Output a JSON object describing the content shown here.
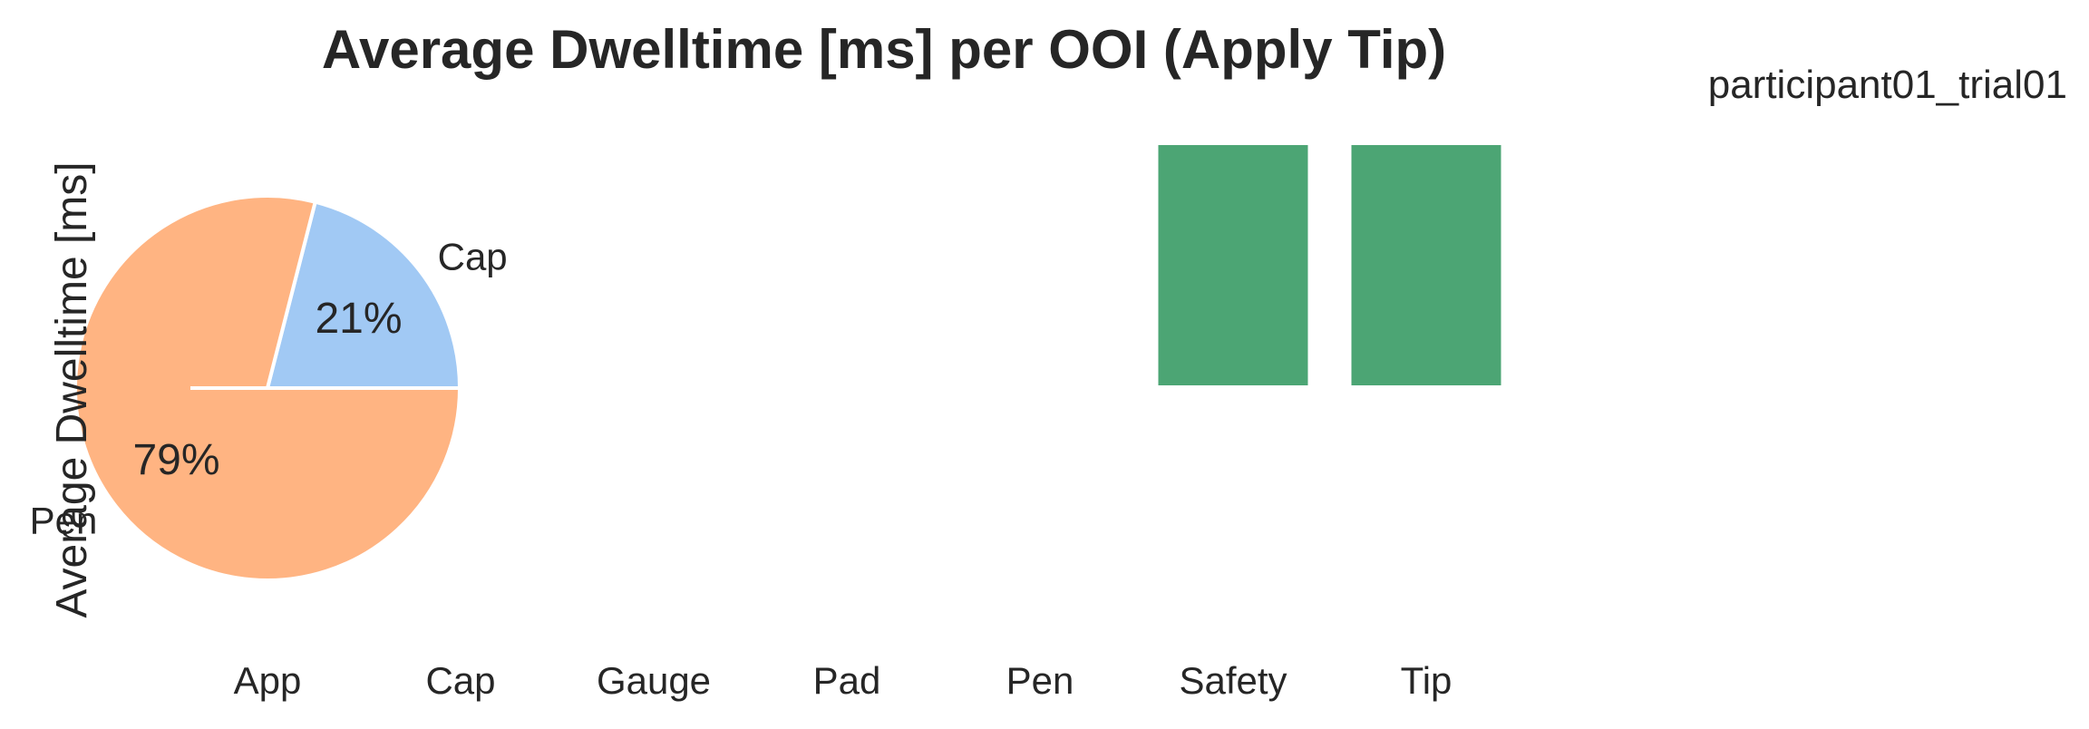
{
  "chart_data": [
    {
      "type": "bar",
      "title": "Average Dwelltime [ms] per OOI (Apply Tip)",
      "subtitle": "participant01_trial01",
      "ylabel": "Average Dwelltime [ms]",
      "xlabel": "",
      "categories": [
        "App",
        "Cap",
        "Gauge",
        "Pad",
        "Pen",
        "Safety",
        "Tip"
      ],
      "values": [
        0,
        0,
        0,
        0,
        0,
        1,
        1
      ],
      "bar_color": "#4ca574",
      "grid": false
    },
    {
      "type": "pie",
      "slices": [
        {
          "label": "Cap",
          "percent": 21,
          "pct_label": "21%",
          "color": "#a1c9f4"
        },
        {
          "label": "Pen",
          "percent": 79,
          "pct_label": "79%",
          "color": "#ffb482"
        }
      ]
    }
  ]
}
